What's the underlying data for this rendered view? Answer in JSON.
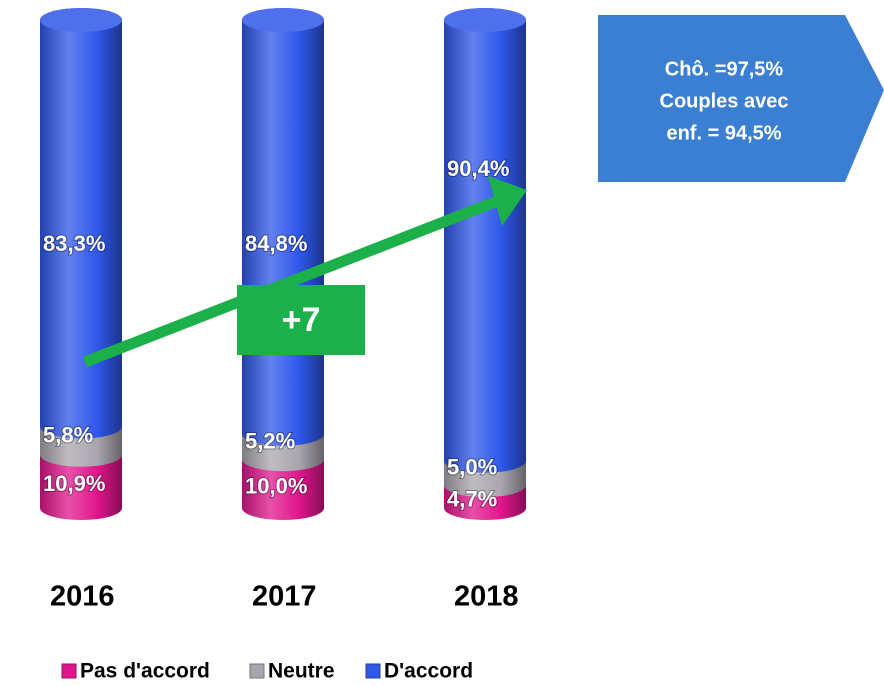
{
  "chart_data": {
    "type": "stacked-cylinder",
    "categories": [
      "2016",
      "2017",
      "2018"
    ],
    "series": [
      {
        "name": "Pas d'accord",
        "color": "#e0158c",
        "values": [
          10.9,
          10.0,
          4.7
        ],
        "value_labels": [
          "10,9%",
          "10,0%",
          "4,7%"
        ]
      },
      {
        "name": "Neutre",
        "color": "#a9a5ae",
        "values": [
          5.8,
          5.2,
          5.0
        ],
        "value_labels": [
          "5,8%",
          "5,2%",
          "5,0%"
        ]
      },
      {
        "name": "D'accord",
        "color": "#2f57ea",
        "values": [
          83.3,
          84.8,
          90.4
        ],
        "value_labels": [
          "83,3%",
          "84,8%",
          "90,4%"
        ]
      }
    ],
    "annotations": {
      "trend": "+7",
      "callout": [
        "Chô. =97,5%",
        "Couples avec",
        "enf. = 94,5%"
      ]
    },
    "legend": "bottom"
  }
}
